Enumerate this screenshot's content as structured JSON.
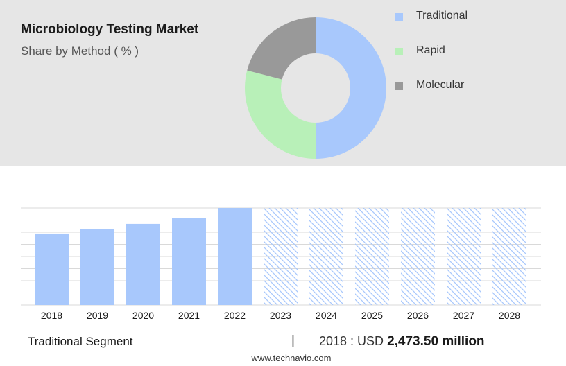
{
  "title": "Microbiology Testing Market",
  "subtitle": "Share by Method ( % )",
  "colors": {
    "traditional": "#a8c8fc",
    "rapid": "#b8f0b8",
    "molecular": "#999999",
    "bar": "#a8c8fc",
    "forecast_hatch": "#a8c8fc",
    "panel": "#e6e6e6"
  },
  "chart_data": [
    {
      "type": "pie",
      "title": "Share by Method ( % )",
      "donut": true,
      "legend_position": "right",
      "series": [
        {
          "name": "Traditional",
          "value": 50
        },
        {
          "name": "Rapid",
          "value": 29
        },
        {
          "name": "Molecular",
          "value": 21
        }
      ]
    },
    {
      "type": "bar",
      "categories": [
        "2018",
        "2019",
        "2020",
        "2021",
        "2022",
        "2023",
        "2024",
        "2025",
        "2026",
        "2027",
        "2028"
      ],
      "values": [
        2473.5,
        2630,
        2810,
        3000,
        3360,
        null,
        null,
        null,
        null,
        null,
        null
      ],
      "forecast": [
        false,
        false,
        false,
        false,
        false,
        true,
        true,
        true,
        true,
        true,
        true
      ],
      "ylim": [
        0,
        3360
      ],
      "grid": true,
      "xlabel": "",
      "ylabel": ""
    }
  ],
  "footer": {
    "segment_label": "Traditional Segment",
    "separator": "|",
    "stat_prefix": "2018 : USD",
    "stat_value": "2,473.50 million",
    "website": "www.technavio.com"
  }
}
